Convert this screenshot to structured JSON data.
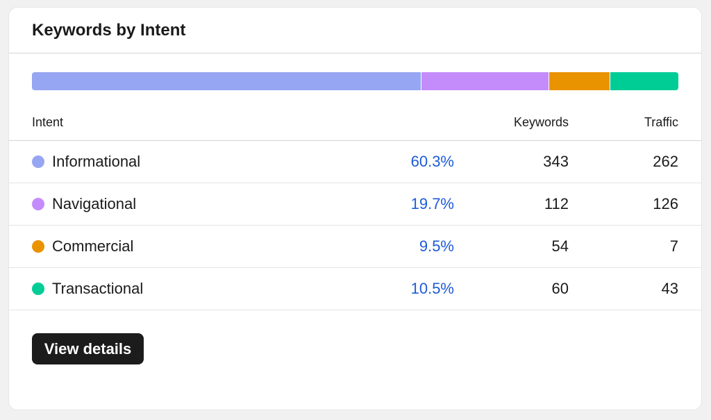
{
  "header": {
    "title": "Keywords by Intent"
  },
  "table": {
    "columns": [
      "Intent",
      "Keywords",
      "Traffic"
    ],
    "rows": [
      {
        "name": "Informational",
        "color": "#96a6f2",
        "share": {
          "value": 60.3,
          "label": "60.3%"
        },
        "keywords": 343,
        "traffic": 262
      },
      {
        "name": "Navigational",
        "color": "#c48cfb",
        "share": {
          "value": 19.7,
          "label": "19.7%"
        },
        "keywords": 112,
        "traffic": 126
      },
      {
        "name": "Commercial",
        "color": "#ea9300",
        "share": {
          "value": 9.5,
          "label": "9.5%"
        },
        "keywords": 54,
        "traffic": 7
      },
      {
        "name": "Transactional",
        "color": "#00cc96",
        "share": {
          "value": 10.5,
          "label": "10.5%"
        },
        "keywords": 60,
        "traffic": 43
      }
    ]
  },
  "button": {
    "label": "View details"
  }
}
